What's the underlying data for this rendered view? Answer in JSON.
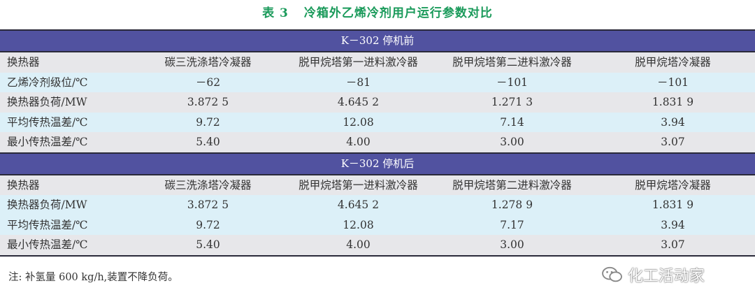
{
  "title": {
    "label": "表 3",
    "text": "冷箱外乙烯冷剂用户运行参数对比"
  },
  "sections": [
    {
      "header": "K－302 停机前",
      "rows": [
        [
          "换热器",
          "碳三洗涤塔冷凝器",
          "脱甲烷塔第一进料激冷器",
          "脱甲烷塔第二进料激冷器",
          "脱甲烷塔冷凝器"
        ],
        [
          "乙烯冷剂级位/℃",
          "－62",
          "－81",
          "－101",
          "－101"
        ],
        [
          "换热器负荷/MW",
          "3.872 5",
          "4.645 2",
          "1.271 3",
          "1.831 9"
        ],
        [
          "平均传热温差/℃",
          "9.72",
          "12.08",
          "7.14",
          "3.94"
        ],
        [
          "最小传热温差/℃",
          "5.40",
          "4.00",
          "3.00",
          "3.07"
        ]
      ]
    },
    {
      "header": "K－302 停机后",
      "rows": [
        [
          "换热器",
          "碳三洗涤塔冷凝器",
          "脱甲烷塔第一进料激冷器",
          "脱甲烷塔第二进料激冷器",
          "脱甲烷塔冷凝器"
        ],
        [
          "换热器负荷/MW",
          "3.872 5",
          "4.645 2",
          "1.278 9",
          "1.831 9"
        ],
        [
          "平均传热温差/℃",
          "9.72",
          "12.08",
          "7.17",
          "3.94"
        ],
        [
          "最小传热温差/℃",
          "5.40",
          "4.00",
          "3.00",
          "3.07"
        ]
      ]
    }
  ],
  "note": "注: 补氢量 600 kg/h,装置不降负荷。",
  "watermark": {
    "text": "化工活动家",
    "icon": "wechat-icon"
  },
  "colors": {
    "title": "#1a9a5a",
    "band": "#5152a0",
    "row_gray": "#e7e7ea",
    "row_blue": "#dcf0f8"
  }
}
